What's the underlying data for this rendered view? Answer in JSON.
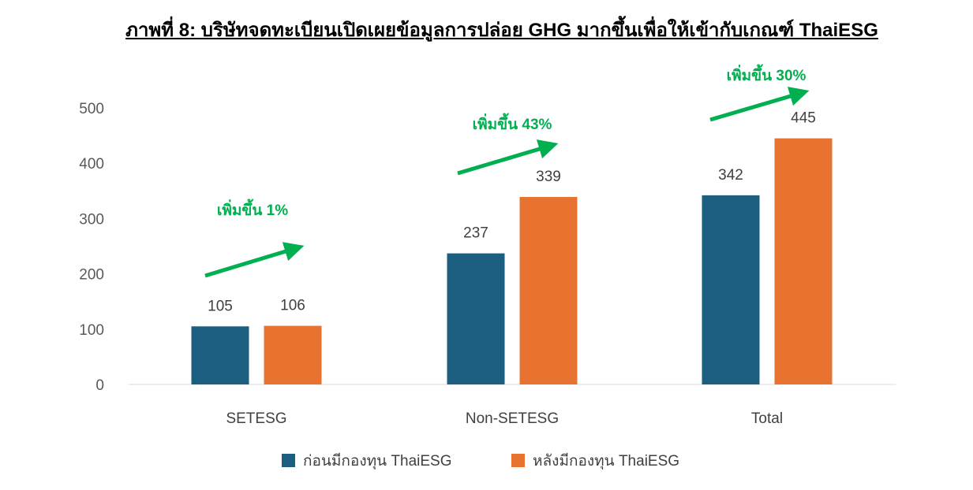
{
  "title": "ภาพที่ 8: บริษัทจดทะเบียนเปิดเผยข้อมูลการปล่อย GHG มากขึ้นเพื่อให้เข้ากับเกณฑ์ ThaiESG",
  "chart_data": {
    "type": "bar",
    "categories": [
      "SETESG",
      "Non-SETESG",
      "Total"
    ],
    "series": [
      {
        "name": "ก่อนมีกองทุน ThaiESG",
        "values": [
          105,
          237,
          342
        ],
        "color": "#1B5E7F"
      },
      {
        "name": "หลังมีกองทุน ThaiESG",
        "values": [
          106,
          339,
          445
        ],
        "color": "#E87331"
      }
    ],
    "ylim": [
      0,
      500
    ],
    "yticks": [
      0,
      100,
      200,
      300,
      400,
      500
    ],
    "grid": false,
    "legend": "bottom",
    "xlabel": "",
    "ylabel": "",
    "annotations": [
      "เพิ่มขึ้น 1%",
      "เพิ่มขึ้น 43%",
      "เพิ่มขึ้น 30%"
    ],
    "annotation_color": "#00B050"
  }
}
